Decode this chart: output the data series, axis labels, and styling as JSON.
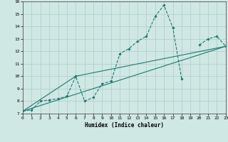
{
  "xlabel": "Humidex (Indice chaleur)",
  "ylabel": "",
  "xlim": [
    0,
    23
  ],
  "ylim": [
    7,
    16
  ],
  "xticks": [
    0,
    1,
    2,
    3,
    4,
    5,
    6,
    7,
    8,
    9,
    10,
    11,
    12,
    13,
    14,
    15,
    16,
    17,
    18,
    19,
    20,
    21,
    22,
    23
  ],
  "yticks": [
    7,
    8,
    9,
    10,
    11,
    12,
    13,
    14,
    15,
    16
  ],
  "bg_color": "#d0e8e4",
  "grid_color": "#aaccc8",
  "line_color": "#1a7a6e",
  "line1_x": [
    0,
    1,
    2,
    3,
    4,
    5,
    6,
    7,
    8,
    9,
    10,
    11,
    12,
    13,
    14,
    15,
    16,
    17,
    18,
    19,
    20,
    21,
    22,
    23
  ],
  "line1_y": [
    7.2,
    7.3,
    8.0,
    8.1,
    8.2,
    8.4,
    10.0,
    8.0,
    8.3,
    9.4,
    9.6,
    11.8,
    12.2,
    12.8,
    13.2,
    14.8,
    15.7,
    13.9,
    9.8,
    null,
    12.5,
    13.0,
    13.2,
    12.4
  ],
  "line2_x": [
    0,
    23
  ],
  "line2_y": [
    7.2,
    12.4
  ],
  "line3_x": [
    0,
    6,
    23
  ],
  "line3_y": [
    7.2,
    10.0,
    12.4
  ]
}
